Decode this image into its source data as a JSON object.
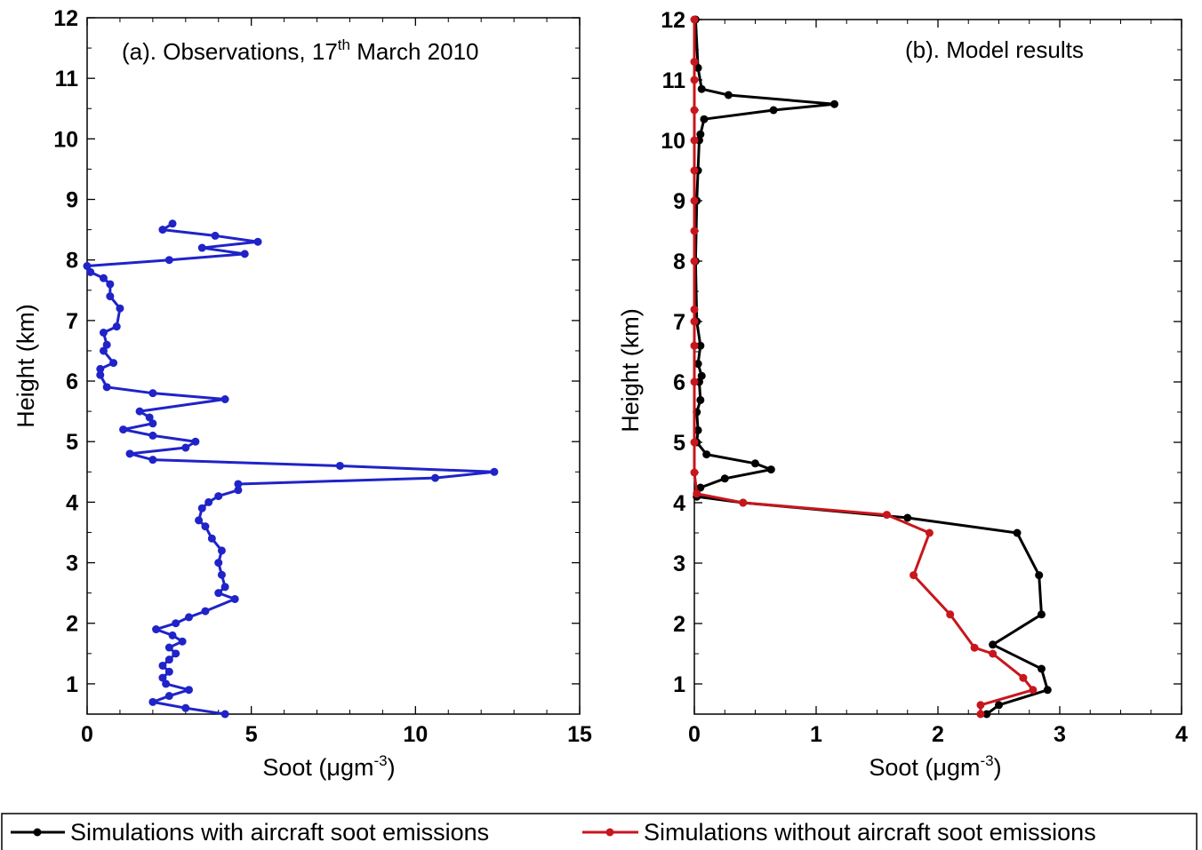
{
  "chart_data": [
    {
      "type": "line",
      "panel": "a",
      "title_main": "(a). Observations, 17",
      "title_sup": "th",
      "title_end": " March 2010",
      "xlabel_main": "Soot (μgm",
      "xlabel_sup": "-3",
      "xlabel_end": ")",
      "ylabel": "Height (km)",
      "xlim": [
        0,
        15
      ],
      "ylim": [
        0.5,
        12
      ],
      "xticks": [
        "0",
        "5",
        "10",
        "15"
      ],
      "yticks": [
        "1",
        "2",
        "3",
        "4",
        "5",
        "6",
        "7",
        "8",
        "9",
        "10",
        "11",
        "12"
      ],
      "grid": false,
      "series": [
        {
          "color": "#1f23c8",
          "points": [
            [
              4.2,
              0.5
            ],
            [
              3.0,
              0.6
            ],
            [
              2.0,
              0.7
            ],
            [
              2.5,
              0.8
            ],
            [
              3.1,
              0.9
            ],
            [
              2.4,
              1.0
            ],
            [
              2.3,
              1.1
            ],
            [
              2.5,
              1.2
            ],
            [
              2.3,
              1.3
            ],
            [
              2.5,
              1.4
            ],
            [
              2.7,
              1.5
            ],
            [
              2.5,
              1.6
            ],
            [
              2.9,
              1.7
            ],
            [
              2.6,
              1.8
            ],
            [
              2.1,
              1.9
            ],
            [
              2.7,
              2.0
            ],
            [
              3.1,
              2.1
            ],
            [
              3.6,
              2.2
            ],
            [
              4.5,
              2.4
            ],
            [
              4.0,
              2.5
            ],
            [
              4.2,
              2.6
            ],
            [
              4.1,
              2.8
            ],
            [
              4.0,
              3.0
            ],
            [
              4.1,
              3.2
            ],
            [
              3.8,
              3.4
            ],
            [
              3.6,
              3.6
            ],
            [
              3.4,
              3.7
            ],
            [
              3.5,
              3.9
            ],
            [
              3.7,
              4.0
            ],
            [
              4.0,
              4.1
            ],
            [
              4.6,
              4.2
            ],
            [
              4.6,
              4.3
            ],
            [
              10.6,
              4.4
            ],
            [
              12.4,
              4.5
            ],
            [
              7.7,
              4.6
            ],
            [
              2.0,
              4.7
            ],
            [
              1.3,
              4.8
            ],
            [
              3.0,
              4.9
            ],
            [
              3.3,
              5.0
            ],
            [
              2.0,
              5.1
            ],
            [
              1.1,
              5.2
            ],
            [
              2.0,
              5.3
            ],
            [
              1.9,
              5.4
            ],
            [
              1.6,
              5.5
            ],
            [
              4.2,
              5.7
            ],
            [
              2.0,
              5.8
            ],
            [
              0.6,
              5.9
            ],
            [
              0.4,
              6.1
            ],
            [
              0.4,
              6.2
            ],
            [
              0.8,
              6.3
            ],
            [
              0.5,
              6.5
            ],
            [
              0.6,
              6.6
            ],
            [
              0.5,
              6.8
            ],
            [
              0.9,
              6.9
            ],
            [
              1.0,
              7.2
            ],
            [
              0.7,
              7.4
            ],
            [
              0.7,
              7.6
            ],
            [
              0.5,
              7.7
            ],
            [
              0.1,
              7.8
            ],
            [
              0.0,
              7.9
            ],
            [
              2.5,
              8.0
            ],
            [
              4.8,
              8.1
            ],
            [
              3.5,
              8.2
            ],
            [
              5.2,
              8.3
            ],
            [
              3.9,
              8.4
            ],
            [
              2.3,
              8.5
            ],
            [
              2.6,
              8.6
            ]
          ]
        }
      ]
    },
    {
      "type": "line",
      "panel": "b",
      "title": "(b). Model results",
      "xlabel_main": "Soot (μgm",
      "xlabel_sup": "-3",
      "xlabel_end": ")",
      "ylabel": "Height (km)",
      "xlim": [
        0,
        4
      ],
      "ylim": [
        0.5,
        12
      ],
      "xticks": [
        "0",
        "1",
        "2",
        "3",
        "4"
      ],
      "yticks": [
        "1",
        "2",
        "3",
        "4",
        "5",
        "6",
        "7",
        "8",
        "9",
        "10",
        "11",
        "12"
      ],
      "grid": false,
      "series": [
        {
          "name": "Simulations with aircraft soot emissions",
          "color": "#000000",
          "points": [
            [
              2.4,
              0.5
            ],
            [
              2.5,
              0.65
            ],
            [
              2.9,
              0.9
            ],
            [
              2.85,
              1.25
            ],
            [
              2.45,
              1.65
            ],
            [
              2.85,
              2.15
            ],
            [
              2.83,
              2.8
            ],
            [
              2.65,
              3.5
            ],
            [
              1.75,
              3.75
            ],
            [
              0.4,
              4.0
            ],
            [
              0.02,
              4.1
            ],
            [
              0.05,
              4.25
            ],
            [
              0.25,
              4.4
            ],
            [
              0.63,
              4.55
            ],
            [
              0.5,
              4.65
            ],
            [
              0.1,
              4.8
            ],
            [
              0.02,
              5.0
            ],
            [
              0.03,
              5.2
            ],
            [
              0.02,
              5.5
            ],
            [
              0.05,
              5.7
            ],
            [
              0.04,
              6.0
            ],
            [
              0.06,
              6.1
            ],
            [
              0.03,
              6.3
            ],
            [
              0.05,
              6.6
            ],
            [
              0.02,
              7.0
            ],
            [
              0.01,
              8.0
            ],
            [
              0.02,
              9.0
            ],
            [
              0.03,
              9.5
            ],
            [
              0.04,
              10.0
            ],
            [
              0.05,
              10.1
            ],
            [
              0.08,
              10.35
            ],
            [
              0.65,
              10.5
            ],
            [
              1.15,
              10.6
            ],
            [
              0.28,
              10.75
            ],
            [
              0.06,
              10.85
            ],
            [
              0.03,
              11.2
            ],
            [
              0.01,
              12.0
            ]
          ]
        },
        {
          "name": "Simulations without aircraft soot emissions",
          "color": "#c8161c",
          "points": [
            [
              2.35,
              0.5
            ],
            [
              2.35,
              0.65
            ],
            [
              2.78,
              0.9
            ],
            [
              2.7,
              1.1
            ],
            [
              2.45,
              1.5
            ],
            [
              2.3,
              1.6
            ],
            [
              2.1,
              2.15
            ],
            [
              1.8,
              2.8
            ],
            [
              1.93,
              3.5
            ],
            [
              1.58,
              3.8
            ],
            [
              0.4,
              4.0
            ],
            [
              0.02,
              4.15
            ],
            [
              0.0,
              4.5
            ],
            [
              0.0,
              5.0
            ],
            [
              0.0,
              6.0
            ],
            [
              0.0,
              6.6
            ],
            [
              0.0,
              7.0
            ],
            [
              0.0,
              7.2
            ],
            [
              0.0,
              8.0
            ],
            [
              0.0,
              8.5
            ],
            [
              0.0,
              9.0
            ],
            [
              0.0,
              9.5
            ],
            [
              0.0,
              10.0
            ],
            [
              0.0,
              10.5
            ],
            [
              0.0,
              11.0
            ],
            [
              0.0,
              11.3
            ],
            [
              0.0,
              12.0
            ]
          ]
        }
      ]
    }
  ],
  "legend": {
    "entries": [
      {
        "label": "Simulations with aircraft soot emissions",
        "color": "#000000"
      },
      {
        "label": "Simulations without aircraft soot emissions",
        "color": "#c8161c"
      }
    ]
  }
}
